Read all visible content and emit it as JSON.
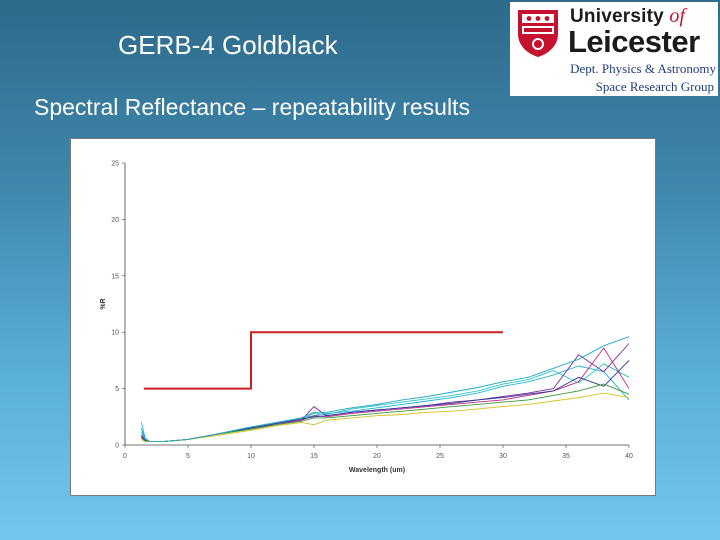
{
  "slide": {
    "title": "GERB-4 Goldblack",
    "subtitle": "Spectral Reflectance – repeatability results"
  },
  "logo": {
    "line1_main": "University ",
    "line1_of": "of",
    "line2": "Leicester",
    "dept": "Dept. Physics & Astronomy",
    "group": "Space Research Group",
    "colors": {
      "red": "#c4122f",
      "blue": "#1f3f7a"
    }
  },
  "chart_data": {
    "type": "line",
    "title": "",
    "xlabel": "Wavelength (um)",
    "ylabel": "%R",
    "xlim": [
      0,
      40
    ],
    "ylim": [
      0,
      25
    ],
    "xticks": [
      0,
      5,
      10,
      15,
      20,
      25,
      30,
      35,
      40
    ],
    "yticks": [
      0,
      5,
      10,
      15,
      20,
      25
    ],
    "grid": false,
    "legend": "none",
    "threshold": {
      "color": "#cc1f1f",
      "x": [
        1.5,
        10,
        10,
        30
      ],
      "y": [
        5,
        5,
        10,
        10
      ]
    },
    "series_colors": [
      "#1fb5d8",
      "#2ec4c4",
      "#7a2a9a",
      "#c02a8a",
      "#2a3a9a",
      "#3a9a3a",
      "#d8c020",
      "#20a8c8",
      "#8a3aaa",
      "#4a6ac8"
    ],
    "series": [
      {
        "x": [
          1.3,
          1.6,
          2,
          3,
          5,
          7,
          10,
          12,
          14,
          15,
          16,
          18,
          20,
          22,
          24,
          26,
          28,
          30,
          32,
          34,
          36,
          38,
          40
        ],
        "y": [
          2.0,
          0.6,
          0.3,
          0.3,
          0.5,
          0.9,
          1.6,
          2.0,
          2.4,
          2.6,
          2.8,
          3.0,
          3.3,
          3.6,
          3.9,
          4.2,
          4.6,
          5.2,
          5.6,
          6.2,
          7.0,
          6.5,
          4.0
        ]
      },
      {
        "x": [
          1.3,
          1.6,
          2,
          3,
          5,
          7,
          10,
          12,
          14,
          15,
          16,
          18,
          20,
          22,
          24,
          26,
          28,
          30,
          32,
          34,
          36,
          38,
          40
        ],
        "y": [
          1.2,
          0.5,
          0.3,
          0.3,
          0.5,
          0.9,
          1.5,
          1.9,
          2.3,
          2.8,
          2.7,
          3.2,
          3.5,
          3.8,
          4.1,
          4.4,
          4.8,
          5.4,
          5.8,
          6.6,
          5.5,
          7.2,
          6.0
        ]
      },
      {
        "x": [
          1.3,
          1.6,
          2,
          3,
          5,
          7,
          10,
          12,
          14,
          15,
          16,
          18,
          20,
          22,
          24,
          26,
          28,
          30,
          32,
          34,
          36,
          38,
          40
        ],
        "y": [
          0.8,
          0.4,
          0.3,
          0.3,
          0.5,
          0.9,
          1.5,
          1.9,
          2.2,
          3.4,
          2.6,
          2.9,
          3.1,
          3.3,
          3.5,
          3.8,
          4.0,
          4.3,
          4.6,
          5.0,
          8.0,
          6.5,
          9.0
        ]
      },
      {
        "x": [
          1.3,
          1.6,
          2,
          3,
          5,
          7,
          10,
          12,
          14,
          15,
          16,
          18,
          20,
          22,
          24,
          26,
          28,
          30,
          32,
          34,
          36,
          38,
          40
        ],
        "y": [
          0.7,
          0.4,
          0.3,
          0.3,
          0.5,
          0.9,
          1.5,
          1.8,
          2.2,
          2.6,
          2.5,
          2.8,
          3.0,
          3.2,
          3.4,
          3.6,
          3.8,
          4.0,
          4.4,
          4.8,
          5.6,
          8.6,
          5.0
        ]
      },
      {
        "x": [
          1.3,
          1.6,
          2,
          3,
          5,
          7,
          10,
          12,
          14,
          15,
          16,
          18,
          20,
          22,
          24,
          26,
          28,
          30,
          32,
          34,
          36,
          38,
          40
        ],
        "y": [
          0.9,
          0.4,
          0.3,
          0.3,
          0.5,
          0.9,
          1.5,
          1.9,
          2.3,
          2.5,
          2.6,
          2.9,
          3.1,
          3.3,
          3.5,
          3.7,
          4.0,
          4.2,
          4.5,
          4.8,
          6.0,
          5.2,
          7.5
        ]
      },
      {
        "x": [
          1.3,
          1.6,
          2,
          3,
          5,
          7,
          10,
          12,
          14,
          15,
          16,
          18,
          20,
          22,
          24,
          26,
          28,
          30,
          32,
          34,
          36,
          38,
          40
        ],
        "y": [
          0.6,
          0.3,
          0.3,
          0.3,
          0.5,
          0.9,
          1.4,
          1.8,
          2.1,
          2.4,
          2.4,
          2.6,
          2.8,
          3.0,
          3.2,
          3.4,
          3.6,
          3.8,
          4.0,
          4.4,
          4.8,
          5.4,
          4.5
        ]
      },
      {
        "x": [
          1.3,
          1.6,
          2,
          3,
          5,
          7,
          10,
          12,
          14,
          15,
          16,
          18,
          20,
          22,
          24,
          26,
          28,
          30,
          32,
          34,
          36,
          38,
          40
        ],
        "y": [
          0.5,
          0.3,
          0.3,
          0.3,
          0.5,
          0.8,
          1.3,
          1.7,
          2.0,
          1.8,
          2.2,
          2.4,
          2.6,
          2.7,
          2.9,
          3.0,
          3.2,
          3.4,
          3.6,
          3.9,
          4.2,
          4.6,
          4.2
        ]
      },
      {
        "x": [
          1.3,
          1.6,
          2,
          3,
          5,
          7,
          10,
          12,
          14,
          15,
          16,
          18,
          20,
          22,
          24,
          26,
          28,
          30,
          32,
          34,
          36,
          38,
          40
        ],
        "y": [
          1.5,
          0.5,
          0.3,
          0.3,
          0.5,
          0.9,
          1.6,
          2.0,
          2.4,
          2.9,
          2.9,
          3.3,
          3.6,
          4.0,
          4.3,
          4.7,
          5.1,
          5.6,
          6.0,
          6.8,
          7.6,
          8.8,
          9.6
        ]
      }
    ]
  }
}
